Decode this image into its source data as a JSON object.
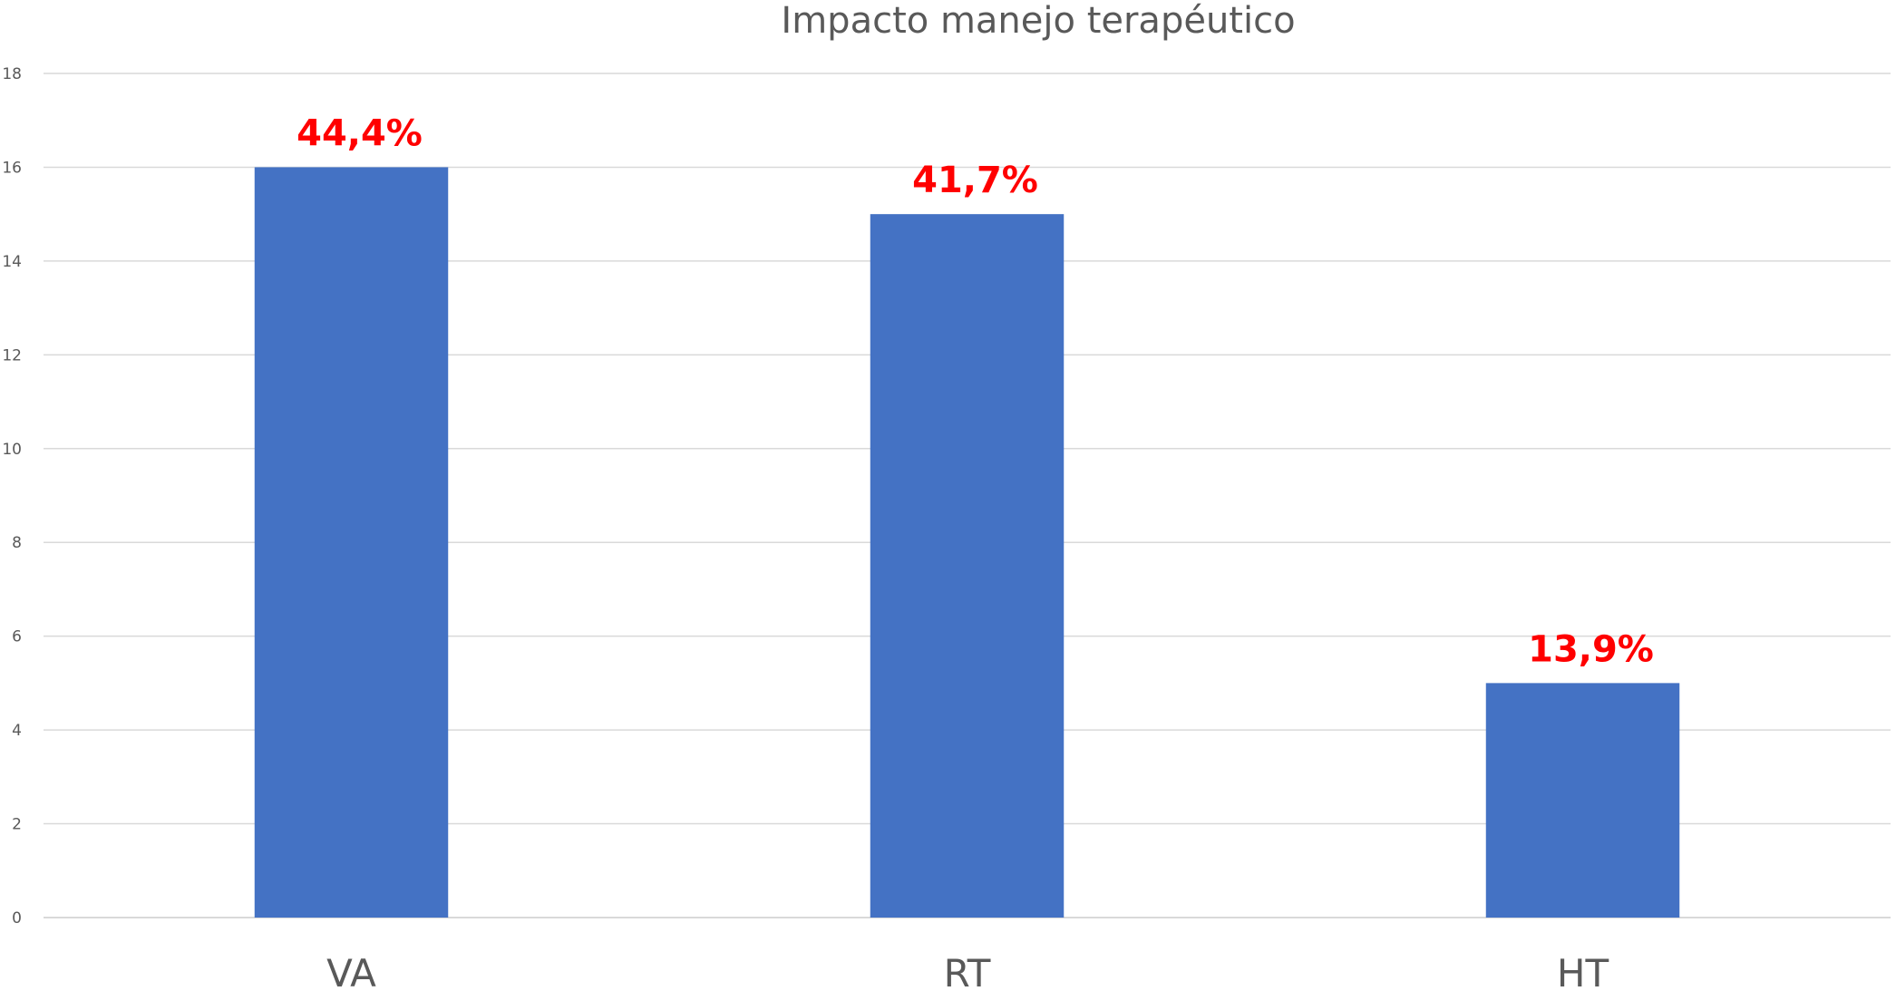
{
  "chart_data": {
    "type": "bar",
    "title": "Impacto manejo terapéutico",
    "xlabel": "",
    "ylabel": "",
    "categories": [
      "VA",
      "RT",
      "HT"
    ],
    "values": [
      16,
      15,
      5
    ],
    "data_labels": [
      "44,4%",
      "41,7%",
      "13,9%"
    ],
    "ylim": [
      0,
      18
    ],
    "yticks": [
      0,
      2,
      4,
      6,
      8,
      10,
      12,
      14,
      16,
      18
    ],
    "grid": true,
    "legend": "none"
  },
  "colors": {
    "bar": "#4472c4",
    "data_label": "#ff0000"
  }
}
